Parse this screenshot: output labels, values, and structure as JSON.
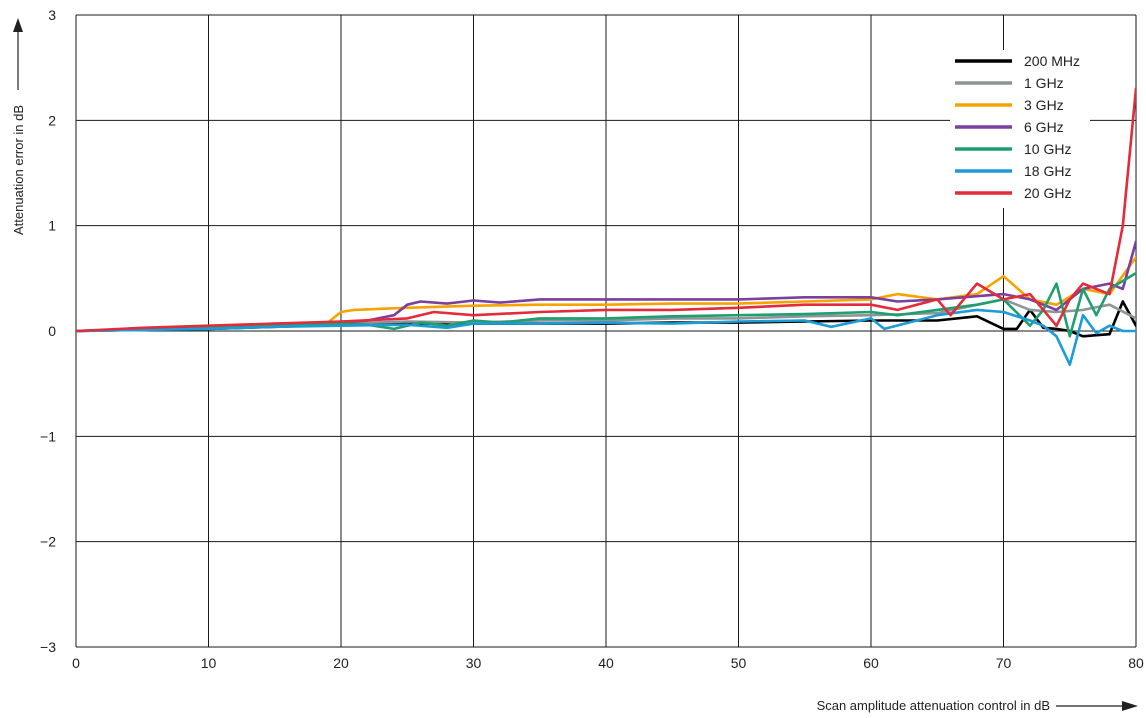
{
  "chart_data": {
    "type": "line",
    "xlabel": "Scan amplitude attenuation control in dB",
    "ylabel": "Attenuation error in dB",
    "xlim": [
      0,
      80
    ],
    "ylim": [
      -3,
      3
    ],
    "xticks": [
      0,
      10,
      20,
      30,
      40,
      50,
      60,
      70,
      80
    ],
    "yticks": [
      3,
      2,
      1,
      0,
      -1,
      -2,
      -3
    ],
    "ytick_labels": [
      "3",
      "2",
      "1",
      "0",
      "−1",
      "−2",
      "−3"
    ],
    "grid": true,
    "legend_position": "top-right",
    "series": [
      {
        "name": "200 MHz",
        "color": "#000000",
        "x": [
          0,
          5,
          10,
          15,
          20,
          25,
          30,
          35,
          40,
          45,
          50,
          55,
          60,
          65,
          68,
          70,
          71,
          72,
          73,
          74,
          75,
          76,
          77,
          78,
          79,
          80
        ],
        "y": [
          0,
          0.01,
          0.02,
          0.04,
          0.06,
          0.07,
          0.07,
          0.07,
          0.07,
          0.08,
          0.08,
          0.09,
          0.1,
          0.1,
          0.14,
          0.02,
          0.02,
          0.2,
          0.03,
          0.02,
          0.0,
          -0.05,
          -0.04,
          -0.03,
          0.28,
          0.05
        ]
      },
      {
        "name": "1 GHz",
        "color": "#8c9598",
        "x": [
          0,
          5,
          10,
          15,
          20,
          25,
          30,
          35,
          40,
          45,
          50,
          55,
          60,
          65,
          70,
          72,
          74,
          76,
          78,
          80
        ],
        "y": [
          0,
          0.01,
          0.03,
          0.05,
          0.07,
          0.09,
          0.08,
          0.1,
          0.1,
          0.12,
          0.12,
          0.14,
          0.15,
          0.17,
          0.3,
          0.2,
          0.18,
          0.2,
          0.25,
          0.12
        ]
      },
      {
        "name": "3 GHz",
        "color": "#f5a300",
        "x": [
          0,
          5,
          10,
          15,
          19,
          20,
          21,
          25,
          30,
          35,
          40,
          45,
          50,
          55,
          60,
          62,
          65,
          68,
          70,
          72,
          74,
          76,
          78,
          80
        ],
        "y": [
          0,
          0.02,
          0.04,
          0.06,
          0.08,
          0.18,
          0.2,
          0.22,
          0.24,
          0.25,
          0.25,
          0.26,
          0.26,
          0.28,
          0.3,
          0.35,
          0.3,
          0.35,
          0.52,
          0.3,
          0.25,
          0.4,
          0.35,
          0.7
        ]
      },
      {
        "name": "6 GHz",
        "color": "#7b3f9e",
        "x": [
          0,
          5,
          10,
          15,
          20,
          22,
          24,
          25,
          26,
          28,
          30,
          32,
          35,
          40,
          45,
          50,
          55,
          60,
          62,
          65,
          68,
          70,
          72,
          74,
          76,
          78,
          79,
          80
        ],
        "y": [
          0,
          0.02,
          0.04,
          0.06,
          0.08,
          0.1,
          0.15,
          0.25,
          0.28,
          0.26,
          0.29,
          0.27,
          0.3,
          0.3,
          0.3,
          0.3,
          0.32,
          0.32,
          0.28,
          0.3,
          0.33,
          0.35,
          0.3,
          0.2,
          0.4,
          0.45,
          0.4,
          0.85
        ]
      },
      {
        "name": "10 GHz",
        "color": "#1f9e6e",
        "x": [
          0,
          5,
          10,
          15,
          20,
          22,
          24,
          26,
          28,
          30,
          32,
          35,
          40,
          45,
          50,
          55,
          60,
          62,
          65,
          68,
          70,
          72,
          73,
          74,
          75,
          76,
          77,
          78,
          80
        ],
        "y": [
          0,
          0.01,
          0.03,
          0.05,
          0.07,
          0.06,
          0.02,
          0.08,
          0.05,
          0.1,
          0.08,
          0.12,
          0.12,
          0.14,
          0.15,
          0.16,
          0.18,
          0.15,
          0.2,
          0.25,
          0.3,
          0.05,
          0.2,
          0.45,
          -0.05,
          0.4,
          0.15,
          0.4,
          0.55
        ]
      },
      {
        "name": "18 GHz",
        "color": "#1c9bd6",
        "x": [
          0,
          5,
          10,
          15,
          20,
          25,
          28,
          30,
          35,
          40,
          45,
          50,
          55,
          57,
          60,
          61,
          65,
          68,
          70,
          72,
          73,
          74,
          75,
          76,
          77,
          78,
          79,
          80
        ],
        "y": [
          0,
          0.01,
          0.02,
          0.04,
          0.05,
          0.06,
          0.03,
          0.07,
          0.07,
          0.08,
          0.07,
          0.09,
          0.1,
          0.04,
          0.12,
          0.02,
          0.15,
          0.2,
          0.18,
          0.1,
          0.05,
          -0.05,
          -0.32,
          0.15,
          -0.02,
          0.05,
          0.0,
          0.0
        ]
      },
      {
        "name": "20 GHz",
        "color": "#e32b3a",
        "x": [
          0,
          5,
          10,
          15,
          20,
          25,
          27,
          30,
          35,
          40,
          45,
          50,
          55,
          60,
          62,
          65,
          66,
          68,
          70,
          72,
          73,
          74,
          75,
          76,
          77,
          78,
          79,
          80
        ],
        "y": [
          0,
          0.03,
          0.05,
          0.07,
          0.09,
          0.12,
          0.18,
          0.15,
          0.18,
          0.2,
          0.2,
          0.22,
          0.25,
          0.25,
          0.2,
          0.3,
          0.15,
          0.45,
          0.3,
          0.35,
          0.2,
          0.05,
          0.3,
          0.45,
          0.4,
          0.35,
          1.0,
          2.3
        ]
      }
    ]
  }
}
